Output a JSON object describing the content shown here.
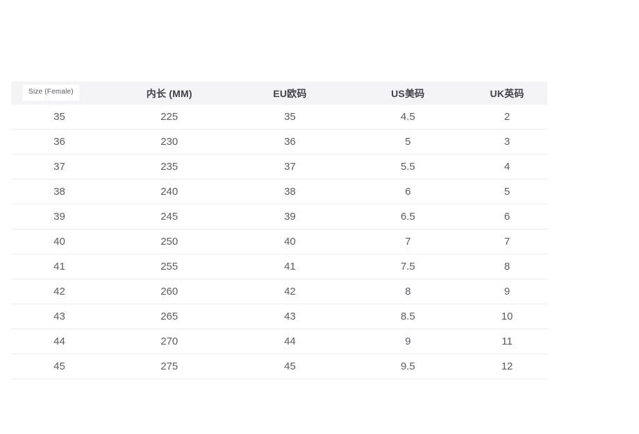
{
  "size_table": {
    "header": {
      "size_label": "Size (Female)",
      "columns": [
        "内长 (MM)",
        "EU欧码",
        "US美码",
        "UK英码"
      ]
    },
    "rows": [
      [
        "35",
        "225",
        "35",
        "4.5",
        "2"
      ],
      [
        "36",
        "230",
        "36",
        "5",
        "3"
      ],
      [
        "37",
        "235",
        "37",
        "5.5",
        "4"
      ],
      [
        "38",
        "240",
        "38",
        "6",
        "5"
      ],
      [
        "39",
        "245",
        "39",
        "6.5",
        "6"
      ],
      [
        "40",
        "250",
        "40",
        "7",
        "7"
      ],
      [
        "41",
        "255",
        "41",
        "7.5",
        "8"
      ],
      [
        "42",
        "260",
        "42",
        "8",
        "9"
      ],
      [
        "43",
        "265",
        "43",
        "8.5",
        "10"
      ],
      [
        "44",
        "270",
        "44",
        "9",
        "11"
      ],
      [
        "45",
        "275",
        "45",
        "9.5",
        "12"
      ]
    ],
    "colors": {
      "header_bg": "#f4f4f6",
      "header_text": "#41414b",
      "cell_text": "#5a5a63",
      "divider": "#ededef",
      "size_label_text": "#57575f",
      "size_label_bg": "#ffffff"
    }
  },
  "chart_data": {
    "type": "table",
    "columns": [
      "Size (Female)",
      "内长 (MM)",
      "EU欧码",
      "US美码",
      "UK英码"
    ],
    "rows": [
      [
        35,
        225,
        35,
        4.5,
        2
      ],
      [
        36,
        230,
        36,
        5,
        3
      ],
      [
        37,
        235,
        37,
        5.5,
        4
      ],
      [
        38,
        240,
        38,
        6,
        5
      ],
      [
        39,
        245,
        39,
        6.5,
        6
      ],
      [
        40,
        250,
        40,
        7,
        7
      ],
      [
        41,
        255,
        41,
        7.5,
        8
      ],
      [
        42,
        260,
        42,
        8,
        9
      ],
      [
        43,
        265,
        43,
        8.5,
        10
      ],
      [
        44,
        270,
        44,
        9,
        11
      ],
      [
        45,
        275,
        45,
        9.5,
        12
      ]
    ]
  }
}
